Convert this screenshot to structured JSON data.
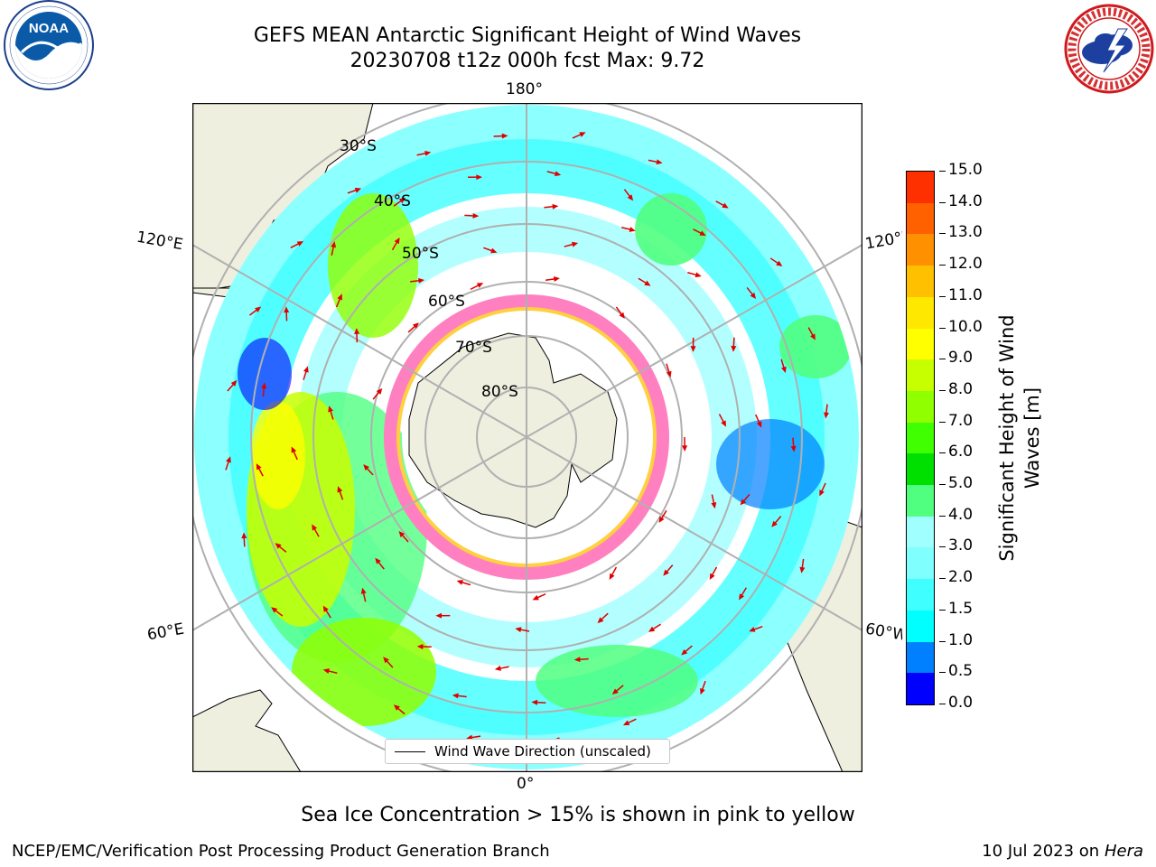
{
  "title": {
    "line1": "GEFS MEAN Antarctic Significant Height of Wind Waves",
    "line2": "20230708 t12z 000h fcst   Max: 9.72"
  },
  "logos": {
    "noaa": {
      "text": "NOAA",
      "ring_text": "NATIONAL OCEANIC AND ATMOSPHERIC ADMINISTRATION · U.S. DEPARTMENT OF COMMERCE",
      "color": "#0a5aa8"
    },
    "nws": {
      "ring_text": "NATIONAL WEATHER SERVICE",
      "color": "#d0191c"
    }
  },
  "map": {
    "projection": "south-polar-stereographic",
    "longitude_labels": {
      "top": "180°",
      "bottom": "0°",
      "left_upper": "120°E",
      "left_lower": "60°E",
      "right_upper": "120°W",
      "right_lower": "60°W"
    },
    "latitude_labels": [
      "30°S",
      "40°S",
      "50°S",
      "60°S",
      "70°S",
      "80°S"
    ],
    "land_color": "#efefe0",
    "ice_colors": [
      "#ff00ff",
      "#ff80c0",
      "#ffd040"
    ],
    "arrow_color": "#e00000"
  },
  "legend": {
    "label": "Wind Wave Direction (unscaled)"
  },
  "colorbar": {
    "label_line1": "Significant Height of Wind",
    "label_line2": "Waves [m]",
    "ticks": [
      "0.0",
      "0.5",
      "1.0",
      "1.5",
      "2.0",
      "3.0",
      "4.0",
      "5.0",
      "6.0",
      "7.0",
      "8.0",
      "9.0",
      "10.0",
      "11.0",
      "12.0",
      "13.0",
      "14.0",
      "15.0"
    ],
    "colors": [
      "#0000ff",
      "#0080ff",
      "#00ffff",
      "#40ffff",
      "#80ffff",
      "#a0ffff",
      "#50ff80",
      "#00e000",
      "#40ff00",
      "#90ff00",
      "#c8ff00",
      "#ffff00",
      "#ffe800",
      "#ffc000",
      "#ff9000",
      "#ff6000",
      "#ff3000"
    ]
  },
  "caption": "Sea Ice Concentration > 15% is shown in pink to yellow",
  "footer": {
    "left": "NCEP/EMC/Verification Post Processing Product Generation Branch",
    "right_prefix": "10 Jul 2023 on ",
    "right_machine": "Hera"
  }
}
